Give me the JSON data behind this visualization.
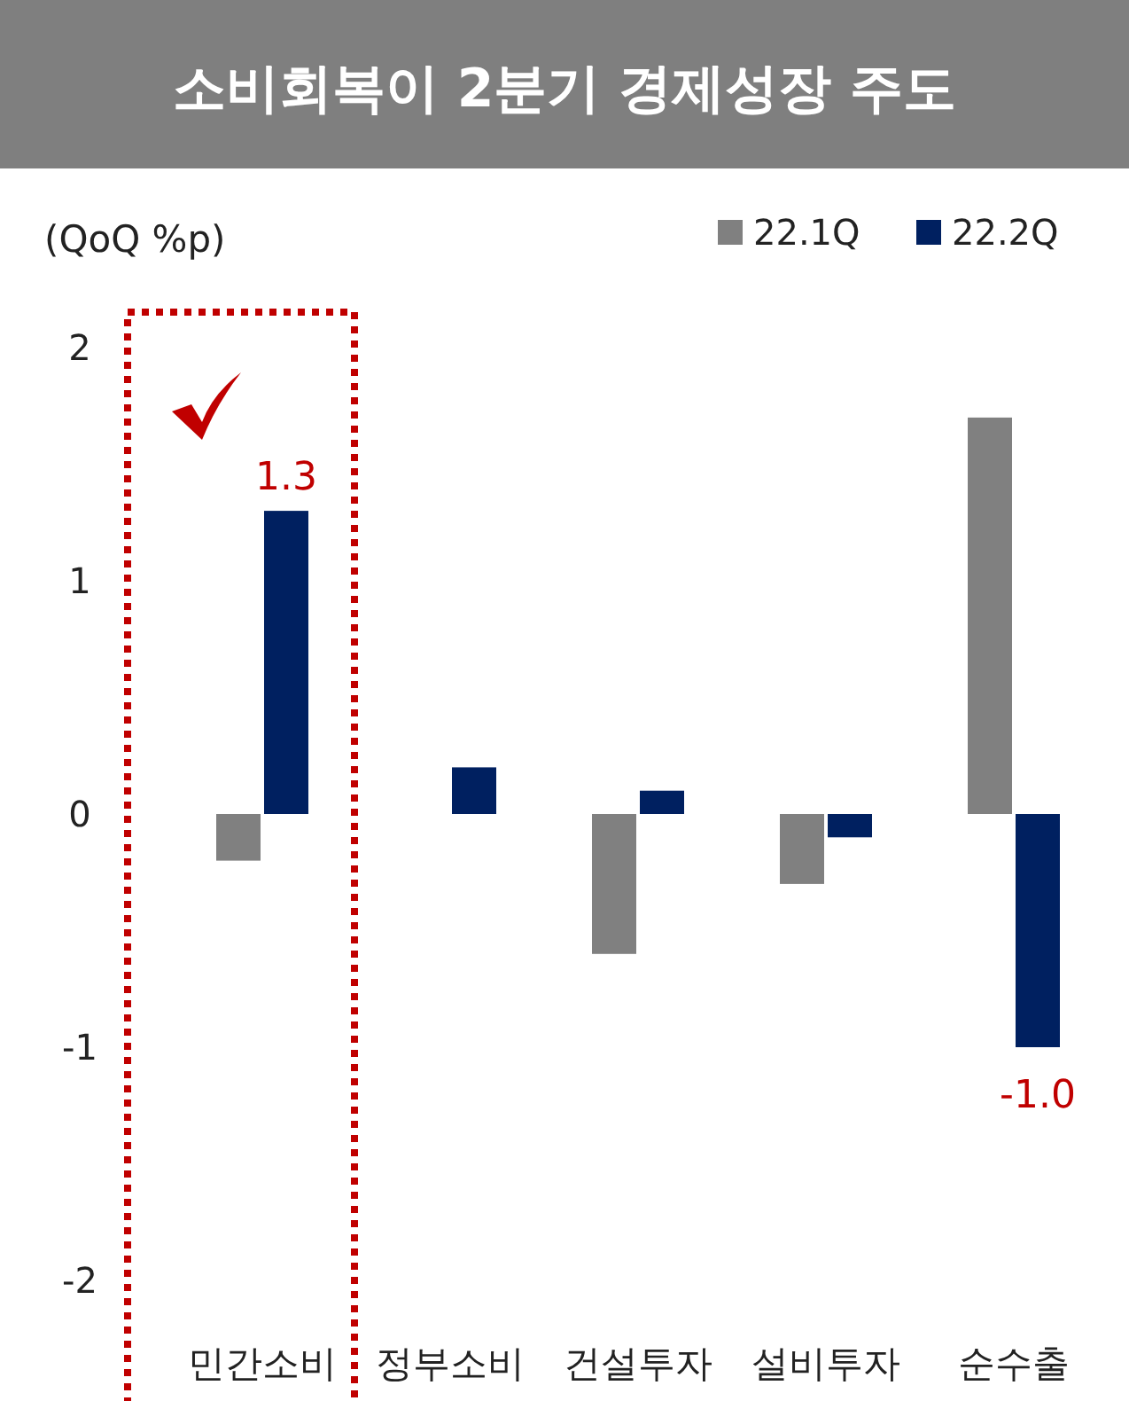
{
  "chart_data": {
    "type": "bar",
    "title": "소비회복이 2분기 경제성장 주도",
    "ylabel": "(QoQ %p)",
    "categories": [
      "민간소비",
      "정부소비",
      "건설투자",
      "설비투자",
      "순수출"
    ],
    "series": [
      {
        "name": "22.1Q",
        "color": "#808080",
        "values": [
          -0.2,
          0,
          -0.6,
          -0.3,
          1.7
        ]
      },
      {
        "name": "22.2Q",
        "color": "#002060",
        "values": [
          1.3,
          0.2,
          0.1,
          -0.1,
          -1.0
        ],
        "value_labels": [
          "1.3",
          null,
          null,
          null,
          "-1.0"
        ]
      }
    ],
    "ylim": [
      -2,
      2
    ],
    "yticks": [
      2,
      1,
      0,
      -1,
      -2
    ],
    "legend": "top right"
  }
}
